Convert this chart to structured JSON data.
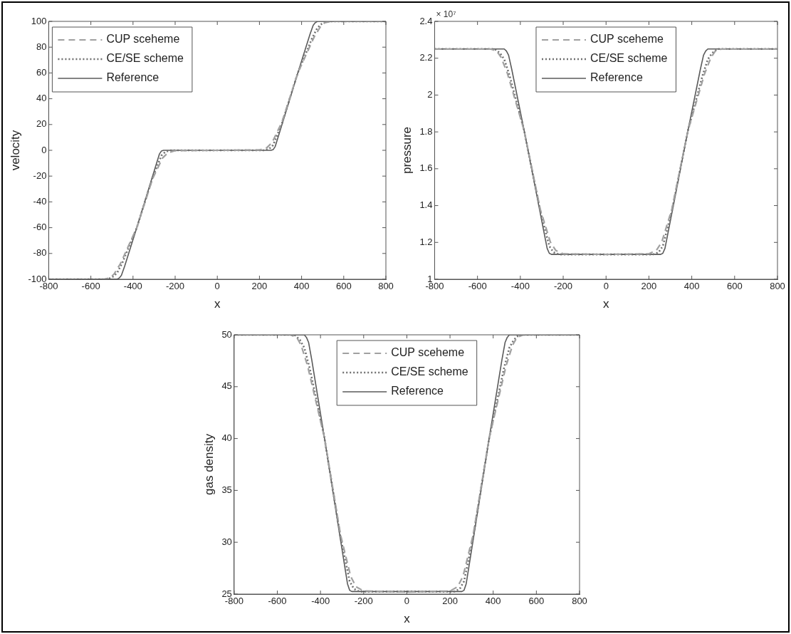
{
  "chart_data": [
    {
      "type": "line",
      "xlabel": "x",
      "ylabel": "velocity",
      "xlim": [
        -800,
        800
      ],
      "xticks": [
        -800,
        -600,
        -400,
        -200,
        0,
        200,
        400,
        600,
        800
      ],
      "ylim": [
        -100,
        100
      ],
      "yticks": [
        -100,
        -80,
        -60,
        -40,
        -20,
        0,
        20,
        40,
        60,
        80,
        100
      ],
      "grid": false,
      "legend": "top left",
      "marker": "none",
      "series": [
        {
          "name": "CUP sceheme",
          "color": "#a0a0a0",
          "line_style": "dashed",
          "x": [
            -800,
            -540,
            -510,
            -490,
            -460,
            -382,
            -307,
            -260,
            -235,
            -200,
            0,
            200,
            235,
            260,
            307,
            382,
            460,
            490,
            510,
            540,
            800
          ],
          "values": [
            -100,
            -100,
            -99,
            -96,
            -88,
            -60,
            -22,
            -6,
            -2,
            -0.3,
            0,
            0.3,
            2,
            6,
            22,
            60,
            88,
            96,
            99,
            100,
            100
          ]
        },
        {
          "name": "CE/SE scheme",
          "color": "#707070",
          "line_style": "dotted",
          "x": [
            -800,
            -520,
            -495,
            -475,
            -450,
            -382,
            -307,
            -265,
            -245,
            -220,
            220,
            245,
            265,
            307,
            382,
            450,
            475,
            495,
            520,
            800
          ],
          "values": [
            -100,
            -100,
            -98,
            -95,
            -87,
            -60,
            -21,
            -4,
            -1,
            0,
            0,
            1,
            4,
            21,
            60,
            87,
            95,
            98,
            100,
            100
          ]
        },
        {
          "name": "Reference",
          "color": "#5a5a5a",
          "line_style": "solid",
          "x": [
            -800,
            -475,
            -465,
            -455,
            -440,
            -382,
            -307,
            -275,
            -265,
            -255,
            255,
            265,
            275,
            307,
            382,
            440,
            455,
            465,
            475,
            800
          ],
          "values": [
            -100,
            -100,
            -99,
            -97,
            -90,
            -60,
            -20,
            -3,
            -0.5,
            0,
            0,
            0.5,
            3,
            20,
            60,
            90,
            97,
            99,
            100,
            100
          ]
        }
      ]
    },
    {
      "type": "line",
      "xlabel": "x",
      "ylabel": "pressure",
      "annotations": [
        "× 10⁷"
      ],
      "xlim": [
        -800,
        800
      ],
      "xticks": [
        -800,
        -600,
        -400,
        -200,
        0,
        200,
        400,
        600,
        800
      ],
      "ylim": [
        1,
        2.4
      ],
      "yticks": [
        1,
        1.2,
        1.4,
        1.6,
        1.8,
        2,
        2.2,
        2.4
      ],
      "grid": false,
      "legend": "top",
      "marker": "none",
      "series": [
        {
          "name": "CUP sceheme",
          "color": "#a0a0a0",
          "line_style": "dashed",
          "x": [
            -800,
            -540,
            -510,
            -490,
            -460,
            -382,
            -307,
            -260,
            -235,
            -200,
            0,
            200,
            235,
            260,
            307,
            382,
            460,
            490,
            510,
            540,
            800
          ],
          "values": [
            2.25,
            2.25,
            2.239,
            2.205,
            2.116,
            1.806,
            1.38,
            1.202,
            1.157,
            1.138,
            1.135,
            1.138,
            1.157,
            1.202,
            1.38,
            1.806,
            2.116,
            2.205,
            2.239,
            2.25,
            2.25
          ]
        },
        {
          "name": "CE/SE scheme",
          "color": "#707070",
          "line_style": "dotted",
          "x": [
            -800,
            -520,
            -495,
            -475,
            -450,
            -382,
            -307,
            -265,
            -245,
            -220,
            220,
            245,
            265,
            307,
            382,
            450,
            475,
            495,
            520,
            800
          ],
          "values": [
            2.25,
            2.25,
            2.228,
            2.194,
            2.105,
            1.806,
            1.369,
            1.18,
            1.146,
            1.135,
            1.135,
            1.146,
            1.18,
            1.369,
            1.806,
            2.105,
            2.194,
            2.228,
            2.25,
            2.25
          ]
        },
        {
          "name": "Reference",
          "color": "#5a5a5a",
          "line_style": "solid",
          "x": [
            -800,
            -475,
            -465,
            -455,
            -440,
            -382,
            -307,
            -275,
            -265,
            -255,
            255,
            265,
            275,
            307,
            382,
            440,
            455,
            465,
            475,
            800
          ],
          "values": [
            2.25,
            2.25,
            2.239,
            2.217,
            2.139,
            1.806,
            1.358,
            1.168,
            1.141,
            1.135,
            1.135,
            1.141,
            1.168,
            1.358,
            1.806,
            2.139,
            2.217,
            2.239,
            2.25,
            2.25
          ]
        }
      ]
    },
    {
      "type": "line",
      "xlabel": "x",
      "ylabel": "gas density",
      "xlim": [
        -800,
        800
      ],
      "xticks": [
        -800,
        -600,
        -400,
        -200,
        0,
        200,
        400,
        600,
        800
      ],
      "ylim": [
        25,
        50
      ],
      "yticks": [
        25,
        30,
        35,
        40,
        45,
        50
      ],
      "grid": false,
      "legend": "top",
      "marker": "none",
      "series": [
        {
          "name": "CUP sceheme",
          "color": "#a0a0a0",
          "line_style": "dashed",
          "x": [
            -800,
            -540,
            -510,
            -490,
            -460,
            -382,
            -307,
            -260,
            -235,
            -200,
            0,
            200,
            235,
            260,
            307,
            382,
            460,
            490,
            510,
            540,
            800
          ],
          "values": [
            50,
            50,
            49.75,
            49.01,
            47.03,
            40.1,
            30.7,
            26.7,
            25.7,
            25.3,
            25.2,
            25.3,
            25.7,
            26.7,
            30.7,
            40.1,
            47.03,
            49.01,
            49.75,
            50,
            50
          ]
        },
        {
          "name": "CE/SE scheme",
          "color": "#707070",
          "line_style": "dotted",
          "x": [
            -800,
            -520,
            -495,
            -475,
            -450,
            -382,
            -307,
            -265,
            -245,
            -220,
            220,
            245,
            265,
            307,
            382,
            450,
            475,
            495,
            520,
            800
          ],
          "values": [
            50,
            50,
            49.5,
            48.76,
            46.78,
            40.1,
            30.45,
            26.24,
            25.5,
            25.25,
            25.25,
            25.5,
            26.24,
            30.45,
            40.1,
            46.78,
            48.76,
            49.5,
            50,
            50
          ]
        },
        {
          "name": "Reference",
          "color": "#5a5a5a",
          "line_style": "solid",
          "x": [
            -800,
            -475,
            -465,
            -455,
            -440,
            -382,
            -307,
            -275,
            -265,
            -255,
            255,
            265,
            275,
            307,
            382,
            440,
            455,
            465,
            475,
            800
          ],
          "values": [
            50,
            50,
            49.75,
            49.26,
            47.53,
            40.1,
            30.2,
            26,
            25.37,
            25.25,
            25.25,
            25.37,
            26,
            30.2,
            40.1,
            47.53,
            49.26,
            49.75,
            50,
            50
          ]
        }
      ]
    }
  ]
}
